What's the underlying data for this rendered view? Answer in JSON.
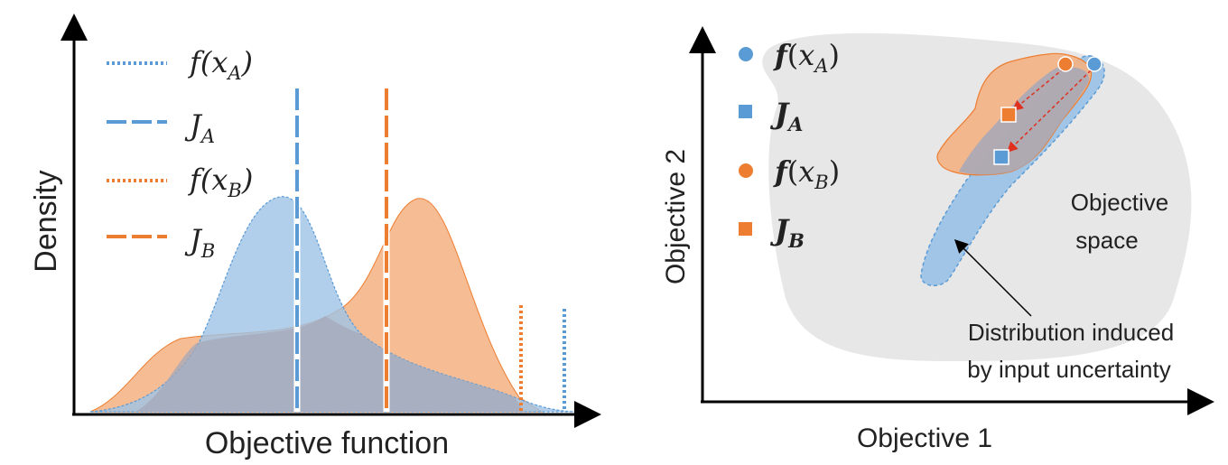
{
  "colors": {
    "blue": "#5b9bd5",
    "blue_fill": "#9dc3e6",
    "orange": "#ed7d31",
    "orange_fill": "#f4b183",
    "overlap_fill": "#a5a8b8",
    "space_fill": "#e7e7e7",
    "arrow_red": "#e0301e"
  },
  "left": {
    "x_axis_label": "Objective function",
    "y_axis_label": "Density",
    "legend": [
      {
        "fn": "f",
        "arg": "x",
        "sub": "A",
        "style": "dotted",
        "color": "blue"
      },
      {
        "fn": "J",
        "sub": "A",
        "style": "dashed",
        "color": "blue"
      },
      {
        "fn": "f",
        "arg": "x",
        "sub": "B",
        "style": "dotted",
        "color": "orange"
      },
      {
        "fn": "J",
        "sub": "B",
        "style": "dashed",
        "color": "orange"
      }
    ]
  },
  "right": {
    "x_axis_label": "Objective 1",
    "y_axis_label": "Objective 2",
    "legend": [
      {
        "fn": "f",
        "arg": "x",
        "sub": "A",
        "marker": "circle",
        "color": "blue"
      },
      {
        "fn": "J",
        "sub": "A",
        "marker": "square",
        "color": "blue"
      },
      {
        "fn": "f",
        "arg": "x",
        "sub": "B",
        "marker": "circle",
        "color": "orange"
      },
      {
        "fn": "J",
        "sub": "B",
        "marker": "square",
        "color": "orange"
      }
    ],
    "space_label_line1": "Objective",
    "space_label_line2": "space",
    "distribution_label_line1": "Distribution induced",
    "distribution_label_line2": "by input uncertainty"
  }
}
